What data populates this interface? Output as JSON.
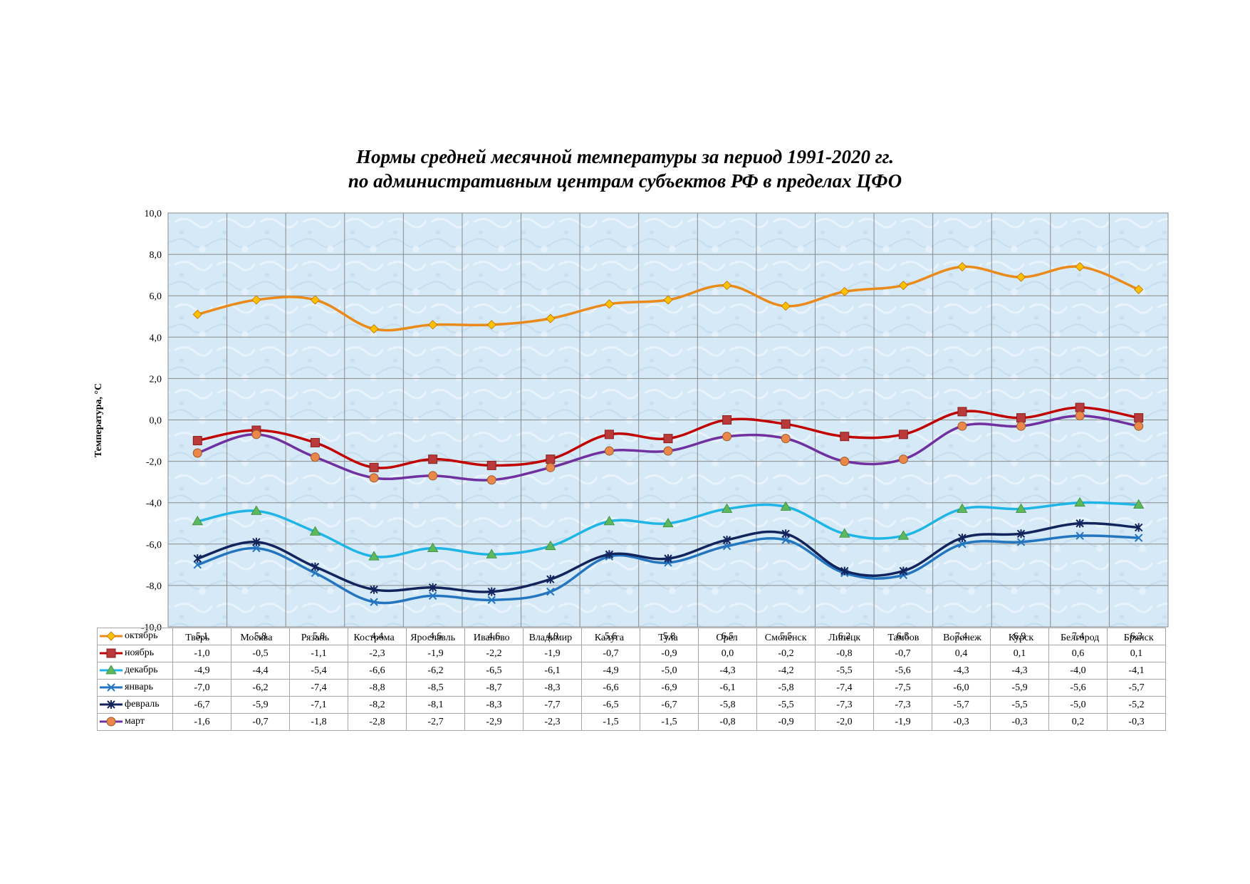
{
  "chart_data": {
    "type": "line",
    "title_line1": "Нормы средней месячной температуры за период 1991-2020 гг.",
    "title_line2": "по административным центрам субъектов РФ в пределах ЦФО",
    "ylabel": "Температура, °С",
    "xlabel": "",
    "ylim": [
      -10,
      10
    ],
    "yticks": [
      "10,0",
      "8,0",
      "6,0",
      "4,0",
      "2,0",
      "0,0",
      "-2,0",
      "-4,0",
      "-6,0",
      "-8,0",
      "-10,0"
    ],
    "ytick_values": [
      10,
      8,
      6,
      4,
      2,
      0,
      -2,
      -4,
      -6,
      -8,
      -10
    ],
    "grid": true,
    "legend_placement": "data-table",
    "categories": [
      "Тверь",
      "Москва",
      "Рязань",
      "Кострома",
      "Ярославль",
      "Иваново",
      "Владимир",
      "Калуга",
      "Тула",
      "Орел",
      "Смоленск",
      "Липецк",
      "Тамбов",
      "Воронеж",
      "Курск",
      "Белгород",
      "Брянск"
    ],
    "series": [
      {
        "name": "октябрь",
        "color": "#e98a1a",
        "marker": "diamond",
        "marker_color": "#ffc000",
        "values": [
          5.1,
          5.8,
          5.8,
          4.4,
          4.6,
          4.6,
          4.9,
          5.6,
          5.8,
          6.5,
          5.5,
          6.2,
          6.5,
          7.4,
          6.9,
          7.4,
          6.3
        ],
        "labels": [
          "5,1",
          "5,8",
          "5,8",
          "4,4",
          "4,6",
          "4,6",
          "4,9",
          "5,6",
          "5,8",
          "6,5",
          "5,5",
          "6,2",
          "6,5",
          "7,4",
          "6,9",
          "7,4",
          "6,3"
        ]
      },
      {
        "name": "ноябрь",
        "color": "#c00000",
        "marker": "square",
        "marker_color": "#b83a3a",
        "values": [
          -1.0,
          -0.5,
          -1.1,
          -2.3,
          -1.9,
          -2.2,
          -1.9,
          -0.7,
          -0.9,
          0.0,
          -0.2,
          -0.8,
          -0.7,
          0.4,
          0.1,
          0.6,
          0.1
        ],
        "labels": [
          "-1,0",
          "-0,5",
          "-1,1",
          "-2,3",
          "-1,9",
          "-2,2",
          "-1,9",
          "-0,7",
          "-0,9",
          "0,0",
          "-0,2",
          "-0,8",
          "-0,7",
          "0,4",
          "0,1",
          "0,6",
          "0,1"
        ]
      },
      {
        "name": "декабрь",
        "color": "#1fb5e6",
        "marker": "triangle",
        "marker_color": "#5cb85c",
        "values": [
          -4.9,
          -4.4,
          -5.4,
          -6.6,
          -6.2,
          -6.5,
          -6.1,
          -4.9,
          -5.0,
          -4.3,
          -4.2,
          -5.5,
          -5.6,
          -4.3,
          -4.3,
          -4.0,
          -4.1
        ],
        "labels": [
          "-4,9",
          "-4,4",
          "-5,4",
          "-6,6",
          "-6,2",
          "-6,5",
          "-6,1",
          "-4,9",
          "-5,0",
          "-4,3",
          "-4,2",
          "-5,5",
          "-5,6",
          "-4,3",
          "-4,3",
          "-4,0",
          "-4,1"
        ]
      },
      {
        "name": "январь",
        "color": "#2475c0",
        "marker": "x",
        "marker_color": "#2475c0",
        "values": [
          -7.0,
          -6.2,
          -7.4,
          -8.8,
          -8.5,
          -8.7,
          -8.3,
          -6.6,
          -6.9,
          -6.1,
          -5.8,
          -7.4,
          -7.5,
          -6.0,
          -5.9,
          -5.6,
          -5.7
        ],
        "labels": [
          "-7,0",
          "-6,2",
          "-7,4",
          "-8,8",
          "-8,5",
          "-8,7",
          "-8,3",
          "-6,6",
          "-6,9",
          "-6,1",
          "-5,8",
          "-7,4",
          "-7,5",
          "-6,0",
          "-5,9",
          "-5,6",
          "-5,7"
        ]
      },
      {
        "name": "февраль",
        "color": "#12245c",
        "marker": "star",
        "marker_color": "#12245c",
        "values": [
          -6.7,
          -5.9,
          -7.1,
          -8.2,
          -8.1,
          -8.3,
          -7.7,
          -6.5,
          -6.7,
          -5.8,
          -5.5,
          -7.3,
          -7.3,
          -5.7,
          -5.5,
          -5.0,
          -5.2
        ],
        "labels": [
          "-6,7",
          "-5,9",
          "-7,1",
          "-8,2",
          "-8,1",
          "-8,3",
          "-7,7",
          "-6,5",
          "-6,7",
          "-5,8",
          "-5,5",
          "-7,3",
          "-7,3",
          "-5,7",
          "-5,5",
          "-5,0",
          "-5,2"
        ]
      },
      {
        "name": "март",
        "color": "#7030a0",
        "marker": "circle",
        "marker_color": "#e9884a",
        "values": [
          -1.6,
          -0.7,
          -1.8,
          -2.8,
          -2.7,
          -2.9,
          -2.3,
          -1.5,
          -1.5,
          -0.8,
          -0.9,
          -2.0,
          -1.9,
          -0.3,
          -0.3,
          0.2,
          -0.3
        ],
        "labels": [
          "-1,6",
          "-0,7",
          "-1,8",
          "-2,8",
          "-2,7",
          "-2,9",
          "-2,3",
          "-1,5",
          "-1,5",
          "-0,8",
          "-0,9",
          "-2,0",
          "-1,9",
          "-0,3",
          "-0,3",
          "0,2",
          "-0,3"
        ]
      }
    ]
  },
  "colors": {
    "plot_background": "#d6e9f6",
    "gridline": "#8a8a8a"
  }
}
